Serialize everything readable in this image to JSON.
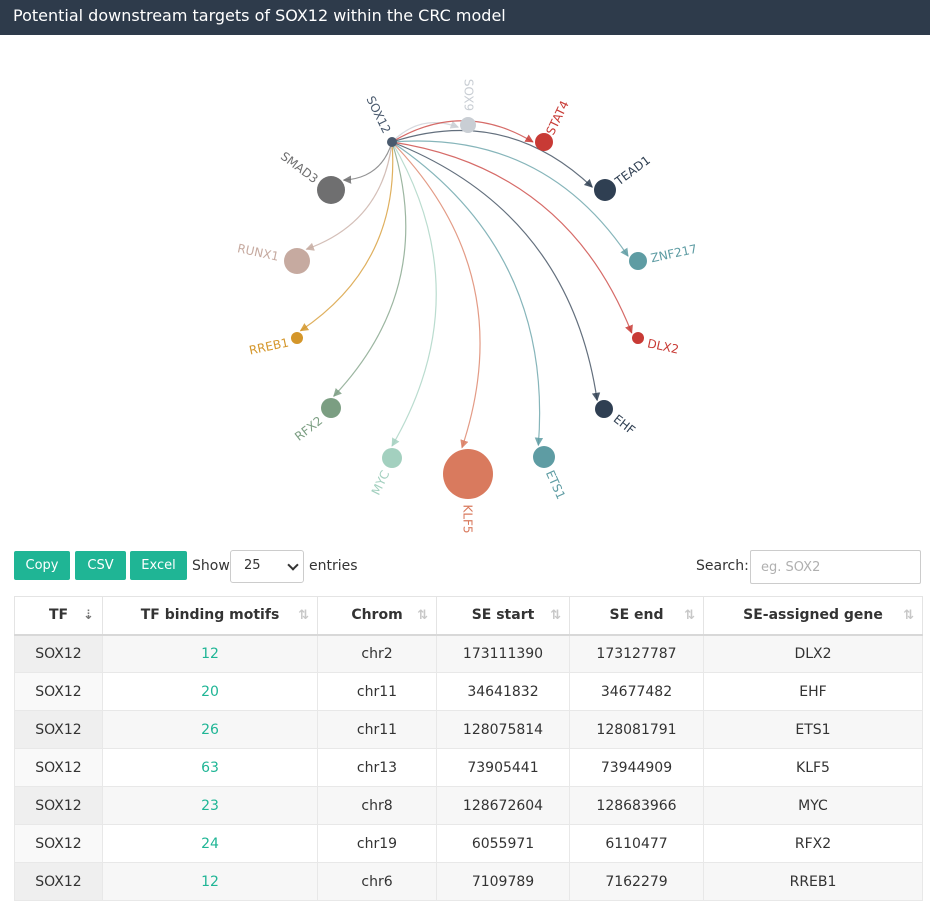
{
  "page": {
    "title": "Potential downstream targets of SOX12 within the CRC model"
  },
  "network": {
    "source": {
      "name": "SOX12",
      "color": "#4a5a6e"
    },
    "targets": [
      {
        "name": "SOX9",
        "color": "#c9ced4"
      },
      {
        "name": "STAT4",
        "color": "#c83a35"
      },
      {
        "name": "TEAD1",
        "color": "#2f3f52"
      },
      {
        "name": "ZNF217",
        "color": "#5e9ca3"
      },
      {
        "name": "DLX2",
        "color": "#c83a35"
      },
      {
        "name": "EHF",
        "color": "#2f3f52"
      },
      {
        "name": "ETS1",
        "color": "#5e9ca3"
      },
      {
        "name": "KLF5",
        "color": "#d97a5e"
      },
      {
        "name": "MYC",
        "color": "#a3d0bf"
      },
      {
        "name": "RFX2",
        "color": "#7b9e82"
      },
      {
        "name": "RREB1",
        "color": "#d4962a"
      },
      {
        "name": "RUNX1",
        "color": "#c6aaa0"
      },
      {
        "name": "SMAD3",
        "color": "#6f6f70"
      }
    ]
  },
  "controls": {
    "copy_label": "Copy",
    "csv_label": "CSV",
    "excel_label": "Excel",
    "show_label": "Show",
    "entries_value": "25",
    "entries_label": "entries",
    "search_label": "Search:",
    "search_placeholder": "eg. SOX2"
  },
  "table": {
    "headers": [
      "TF",
      "TF binding motifs",
      "Chrom",
      "SE start",
      "SE end",
      "SE-assigned gene"
    ],
    "rows": [
      [
        "SOX12",
        "12",
        "chr2",
        "173111390",
        "173127787",
        "DLX2"
      ],
      [
        "SOX12",
        "20",
        "chr11",
        "34641832",
        "34677482",
        "EHF"
      ],
      [
        "SOX12",
        "26",
        "chr11",
        "128075814",
        "128081791",
        "ETS1"
      ],
      [
        "SOX12",
        "63",
        "chr13",
        "73905441",
        "73944909",
        "KLF5"
      ],
      [
        "SOX12",
        "23",
        "chr8",
        "128672604",
        "128683966",
        "MYC"
      ],
      [
        "SOX12",
        "24",
        "chr19",
        "6055971",
        "6110477",
        "RFX2"
      ],
      [
        "SOX12",
        "12",
        "chr6",
        "7109789",
        "7162279",
        "RREB1"
      ]
    ]
  }
}
